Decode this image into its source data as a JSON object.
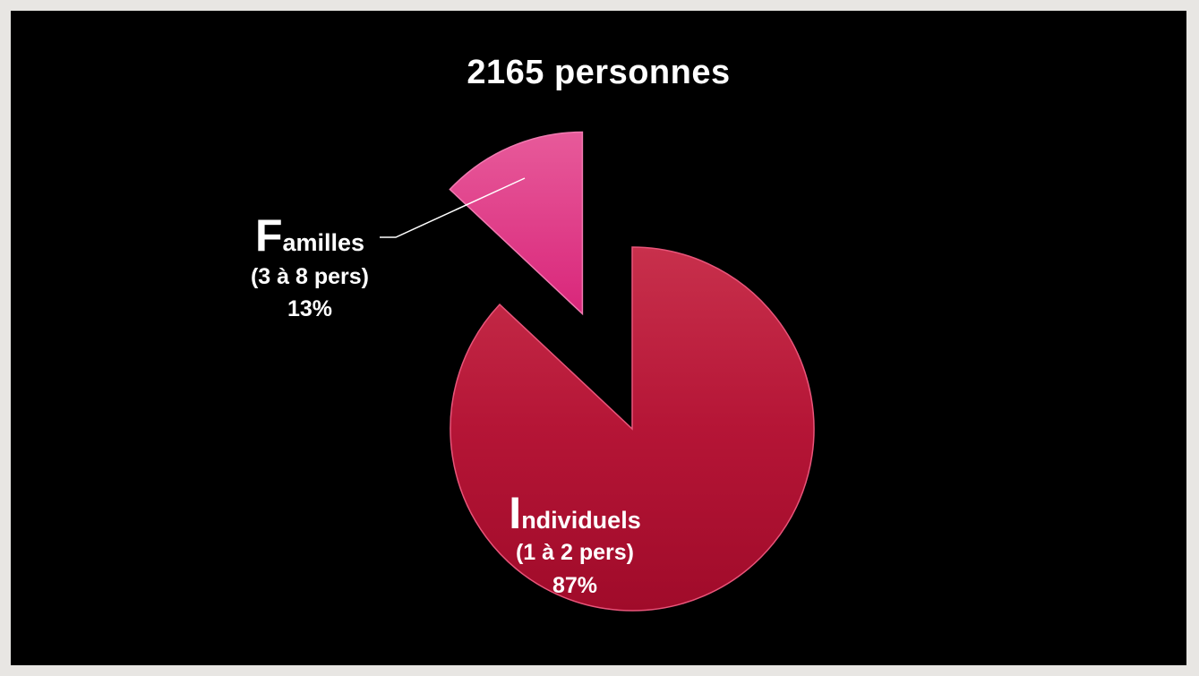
{
  "slide": {
    "title": "2165 personnes"
  },
  "chart_data": {
    "type": "pie",
    "title": "2165 personnes",
    "slices": [
      {
        "label_initial": "I",
        "label_rest": "ndividuels",
        "sublabel": "(1 à 2 pers)",
        "percent_label": "87%",
        "value": 87,
        "color": "#b8102f",
        "exploded": false
      },
      {
        "label_initial": "F",
        "label_rest": "amilles",
        "sublabel": "(3 à 8 pers)",
        "percent_label": "13%",
        "value": 13,
        "color": "#e0287a",
        "exploded": true
      }
    ],
    "legend": "none"
  }
}
